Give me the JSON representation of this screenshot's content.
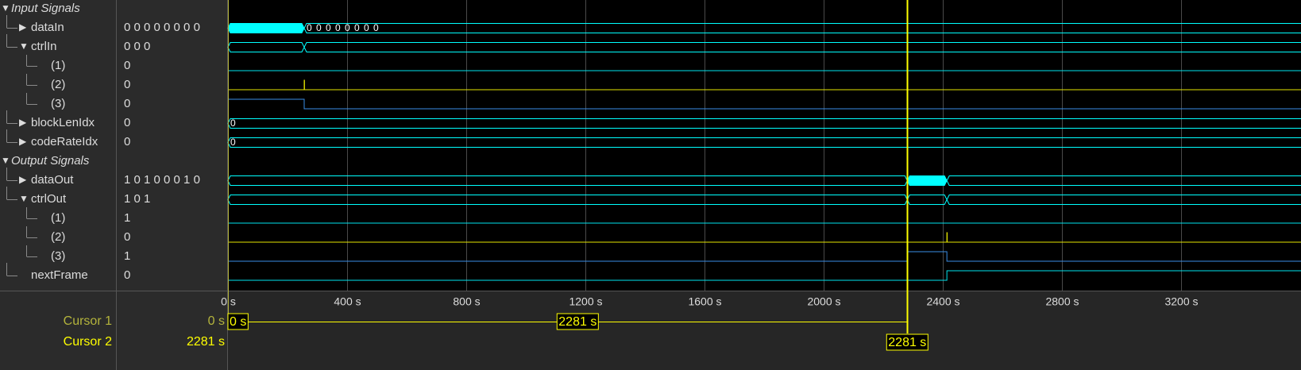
{
  "rows": [
    {
      "name": "Input Signals",
      "kind": "group",
      "expanded": true
    },
    {
      "name": "dataIn",
      "value": "0 0 0 0 0 0 0 0",
      "depth": 1,
      "expanded": false,
      "wave": {
        "type": "bus",
        "color": "#00ffff",
        "segments": [
          {
            "start": 0,
            "end": 256,
            "fill": true
          },
          {
            "start": 256,
            "label": "0 0 0 0 0 0 0 0"
          }
        ]
      }
    },
    {
      "name": "ctrlIn",
      "value": "0 0 0",
      "depth": 1,
      "expanded": true,
      "wave": {
        "type": "bus",
        "color": "#00ffff",
        "segments": [
          {
            "start": 0,
            "end": 256
          },
          {
            "start": 256
          }
        ]
      }
    },
    {
      "name": "(1)",
      "value": "0",
      "depth": 2,
      "wave": {
        "type": "bit",
        "color": "#00e5ee",
        "steps": [
          [
            0,
            0
          ]
        ]
      }
    },
    {
      "name": "(2)",
      "value": "0",
      "depth": 2,
      "wave": {
        "type": "bit",
        "color": "#e6e600",
        "steps": [
          [
            0,
            0
          ],
          [
            256,
            1
          ],
          [
            257,
            0
          ]
        ]
      }
    },
    {
      "name": "(3)",
      "value": "0",
      "depth": 2,
      "wave": {
        "type": "bit",
        "color": "#3a8ee6",
        "steps": [
          [
            0,
            1
          ],
          [
            256,
            0
          ]
        ]
      }
    },
    {
      "name": "blockLenIdx",
      "value": "0",
      "depth": 1,
      "expanded": false,
      "wave": {
        "type": "bus",
        "color": "#00ffff",
        "segments": [
          {
            "start": 0,
            "label": "0"
          }
        ]
      }
    },
    {
      "name": "codeRateIdx",
      "value": "0",
      "depth": 1,
      "expanded": false,
      "wave": {
        "type": "bus",
        "color": "#00ffff",
        "segments": [
          {
            "start": 0,
            "label": "0"
          }
        ]
      }
    },
    {
      "name": "Output Signals",
      "kind": "group",
      "expanded": true
    },
    {
      "name": "dataOut",
      "value": "1 0 1 0 0 0 1 0",
      "depth": 1,
      "expanded": false,
      "wave": {
        "type": "bus",
        "color": "#00ffff",
        "segments": [
          {
            "start": 0,
            "end": 2281
          },
          {
            "start": 2281,
            "end": 2414,
            "fill": true
          },
          {
            "start": 2414
          }
        ]
      }
    },
    {
      "name": "ctrlOut",
      "value": "1 0 1",
      "depth": 1,
      "expanded": true,
      "wave": {
        "type": "bus",
        "color": "#00ffff",
        "segments": [
          {
            "start": 0,
            "end": 2281
          },
          {
            "start": 2281,
            "end": 2414
          },
          {
            "start": 2414
          }
        ]
      }
    },
    {
      "name": "(1)",
      "value": "1",
      "depth": 2,
      "wave": {
        "type": "bit",
        "color": "#00e5ee",
        "steps": [
          [
            0,
            0
          ],
          [
            2281,
            1
          ],
          [
            2282,
            0
          ]
        ]
      }
    },
    {
      "name": "(2)",
      "value": "0",
      "depth": 2,
      "wave": {
        "type": "bit",
        "color": "#e6e600",
        "steps": [
          [
            0,
            0
          ],
          [
            2414,
            1
          ],
          [
            2415,
            0
          ]
        ]
      }
    },
    {
      "name": "(3)",
      "value": "1",
      "depth": 2,
      "wave": {
        "type": "bit",
        "color": "#3a8ee6",
        "steps": [
          [
            0,
            0
          ],
          [
            2281,
            1
          ],
          [
            2414,
            0
          ]
        ]
      }
    },
    {
      "name": "nextFrame",
      "value": "0",
      "depth": 1,
      "wave": {
        "type": "bit",
        "color": "#00e5ee",
        "steps": [
          [
            0,
            0
          ],
          [
            2414,
            1
          ]
        ]
      }
    }
  ],
  "time_axis": {
    "xlim": [
      0,
      3603
    ],
    "ticks": [
      {
        "value": 0,
        "label": "0 s"
      },
      {
        "value": 400,
        "label": "400 s"
      },
      {
        "value": 800,
        "label": "800 s"
      },
      {
        "value": 1200,
        "label": "1200 s"
      },
      {
        "value": 1600,
        "label": "1600 s"
      },
      {
        "value": 2000,
        "label": "2000 s"
      },
      {
        "value": 2400,
        "label": "2400 s"
      },
      {
        "value": 2800,
        "label": "2800 s"
      },
      {
        "value": 3200,
        "label": "3200 s"
      }
    ]
  },
  "cursors": [
    {
      "name": "Cursor 1",
      "time": 0,
      "label": "0 s",
      "color": "#b4b43c"
    },
    {
      "name": "Cursor 2",
      "time": 2281,
      "label": "2281 s",
      "color": "#ffff00"
    }
  ],
  "cursor_delta": "2281 s"
}
